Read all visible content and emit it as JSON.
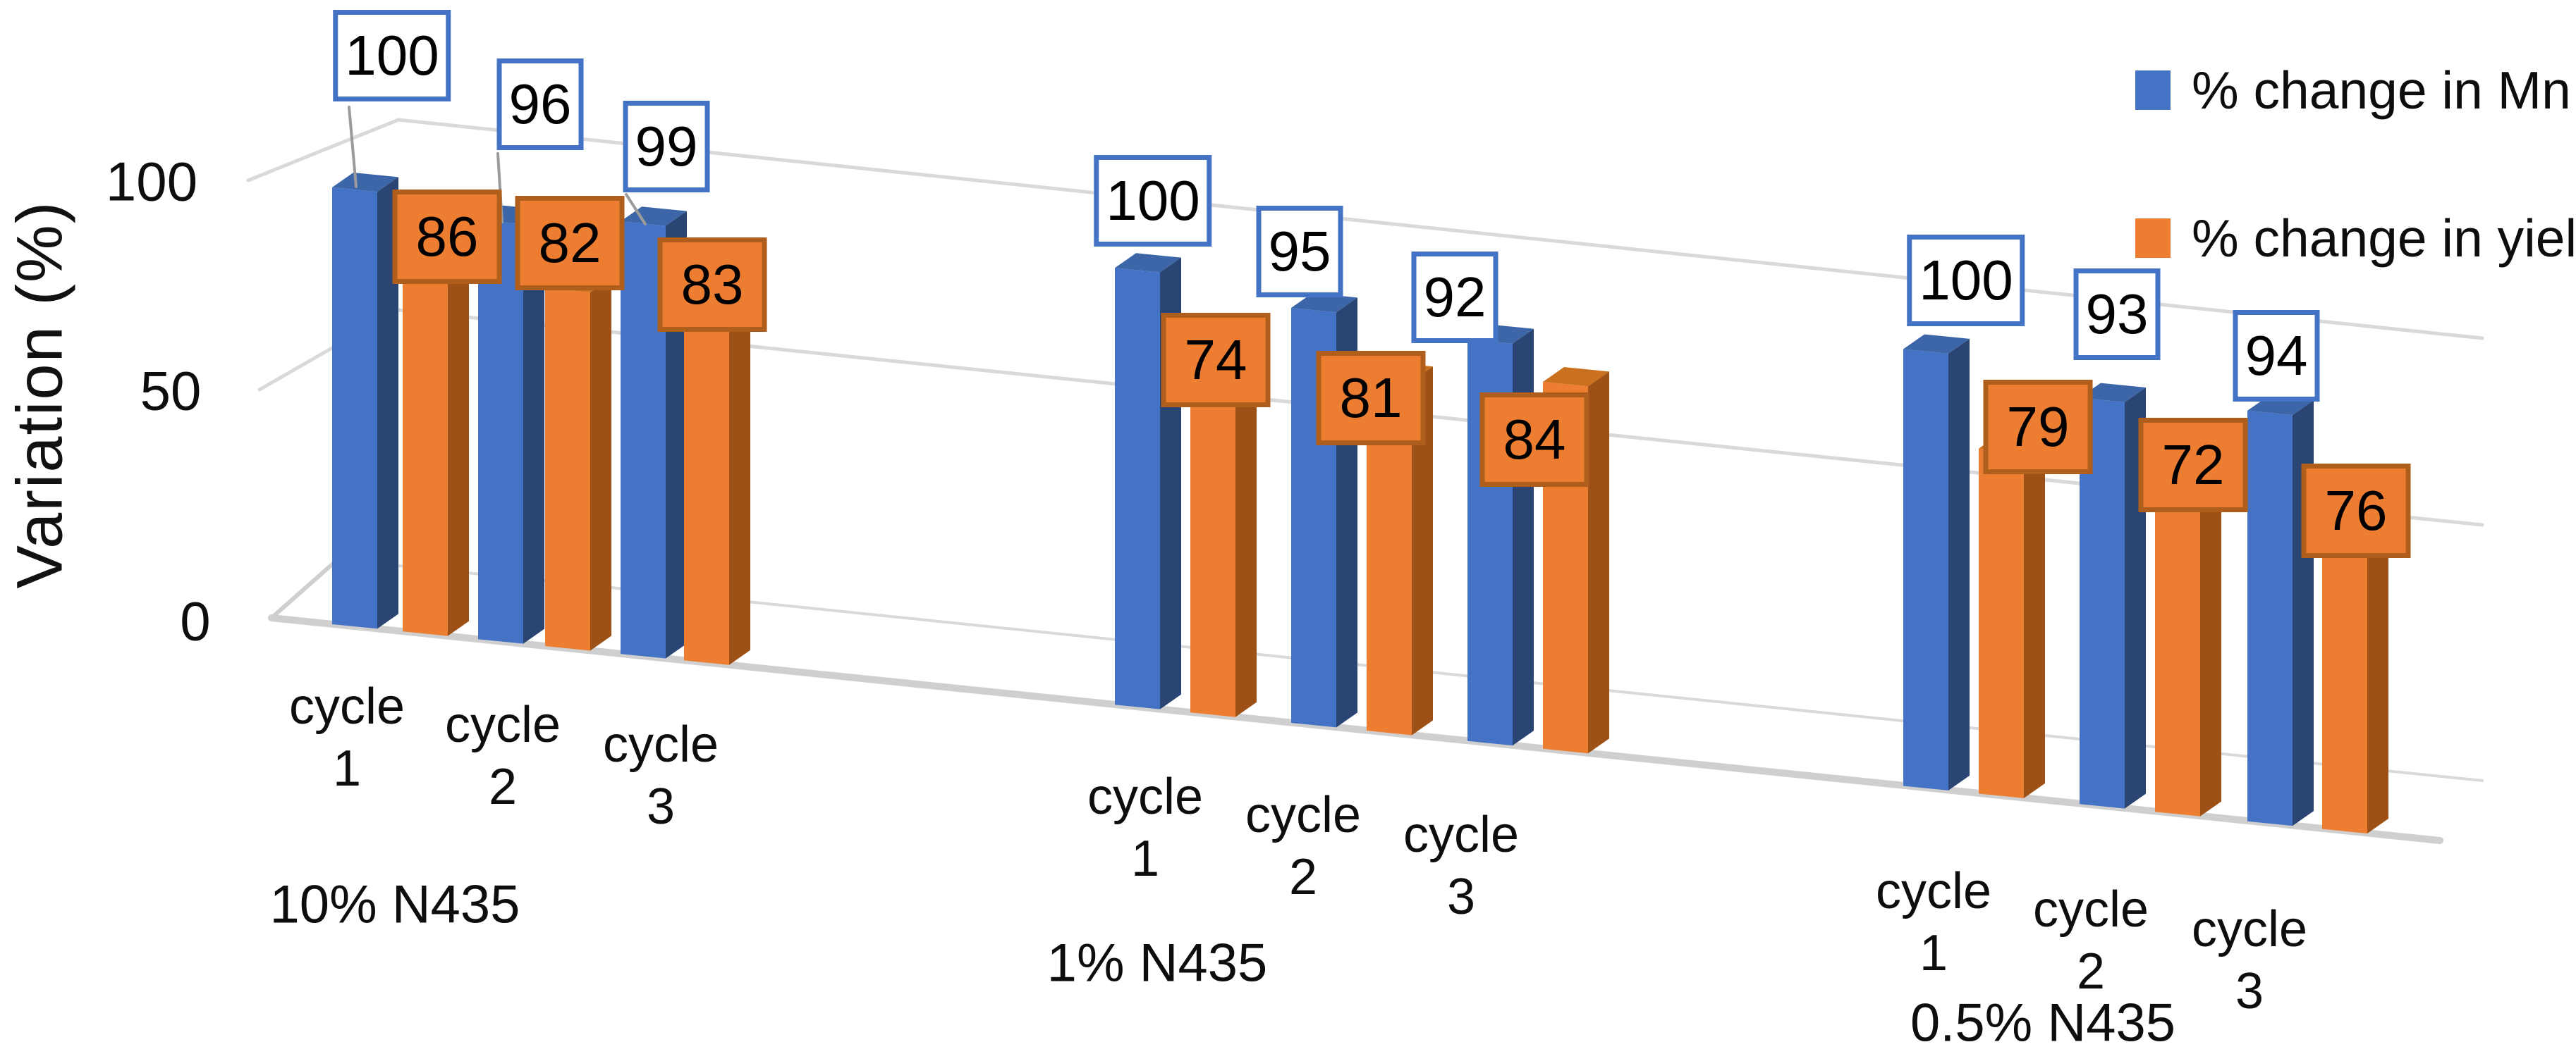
{
  "chart_data": {
    "type": "bar",
    "projection": "3d-clustered-column",
    "title": "",
    "ylabel": "Variation (%)",
    "yticks": [
      0,
      50,
      100
    ],
    "ylim": [
      0,
      100
    ],
    "grid": true,
    "legend_position": "top-right",
    "series": [
      {
        "name": "% change in Mn",
        "color": "#4472C4"
      },
      {
        "name": "% change in yield",
        "color": "#ED7D31"
      }
    ],
    "groups": [
      {
        "label": "10% N435",
        "categories": [
          "cycle 1",
          "cycle 2",
          "cycle 3"
        ],
        "mn": [
          100,
          96,
          99
        ],
        "yield": [
          86,
          82,
          83
        ]
      },
      {
        "label": "1% N435",
        "categories": [
          "cycle 1",
          "cycle 2",
          "cycle 3"
        ],
        "mn": [
          100,
          95,
          92
        ],
        "yield": [
          74,
          81,
          84
        ]
      },
      {
        "label": "0.5% N435",
        "categories": [
          "cycle 1",
          "cycle 2",
          "cycle 3"
        ],
        "mn": [
          100,
          93,
          94
        ],
        "yield": [
          79,
          72,
          76
        ]
      }
    ],
    "data_label_style": {
      "mn": "white box with blue border above bar",
      "yield": "orange box with dark-orange border on bar top"
    }
  },
  "colors": {
    "mn_front": "#4472C4",
    "mn_side": "#2A4573",
    "mn_top": "#3C66A8",
    "yield_front": "#ED7D31",
    "yield_side": "#9E5116",
    "yield_top": "#C9711F",
    "yield_box_border": "#B05E1C",
    "mn_box_border": "#4472C4",
    "gridline": "#D9D9D9",
    "floor": "#CFCFCF",
    "leader": "#9B9B9B",
    "text": "#0d0d0d"
  }
}
